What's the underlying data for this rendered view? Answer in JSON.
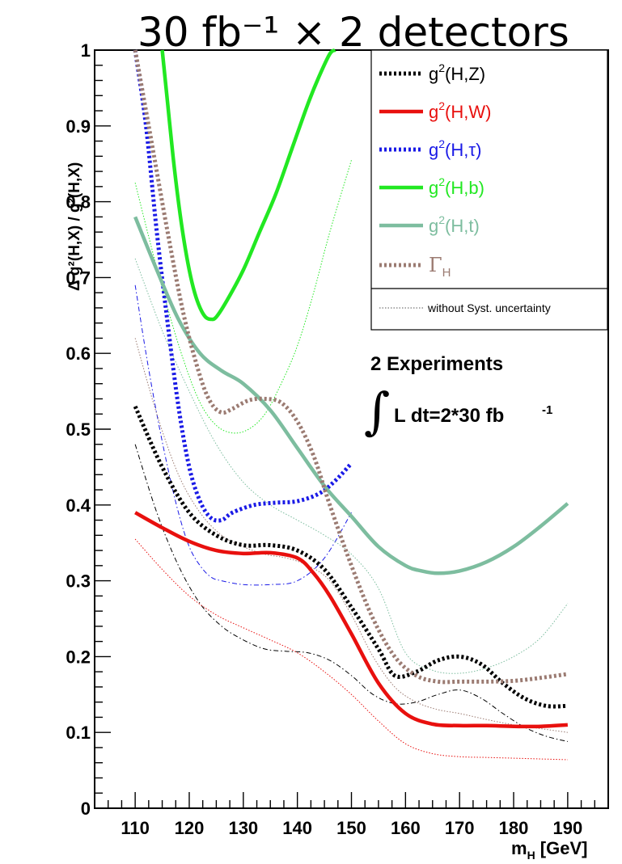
{
  "chart_data": {
    "type": "line",
    "title": "30 fb⁻¹ × 2 detectors",
    "xlabel": "m",
    "xlabel_sub": "H",
    "xlabel_unit": " [GeV]",
    "ylabel": "Δ g²(H,X) / g²(H,X)",
    "xlim": [
      102.5,
      197.5
    ],
    "ylim": [
      0,
      1
    ],
    "x_ticks": [
      110,
      120,
      130,
      140,
      150,
      160,
      170,
      180,
      190
    ],
    "y_ticks": [
      0,
      0.1,
      0.2,
      0.3,
      0.4,
      0.5,
      0.6,
      0.7,
      0.8,
      0.9,
      1
    ],
    "y_tick_labels": [
      "0",
      "0.1",
      "0.2",
      "0.3",
      "0.4",
      "0.5",
      "0.6",
      "0.7",
      "0.8",
      "0.9",
      "1"
    ],
    "grid": false,
    "legend_position": "top-right",
    "series": [
      {
        "name": "g²(H,Z)",
        "label_base": "g",
        "label_sup": "2",
        "label_rest": "(H,Z)",
        "color": "#000000",
        "style": "dotted-thick",
        "x": [
          110,
          115,
          120,
          125,
          130,
          135,
          140,
          145,
          150,
          155,
          158,
          162,
          166,
          170,
          174,
          178,
          182,
          186,
          190
        ],
        "y": [
          0.53,
          0.45,
          0.39,
          0.36,
          0.347,
          0.347,
          0.34,
          0.315,
          0.265,
          0.21,
          0.175,
          0.18,
          0.195,
          0.2,
          0.19,
          0.165,
          0.145,
          0.135,
          0.135
        ]
      },
      {
        "name": "g²(H,W)",
        "label_base": "g",
        "label_sup": "2",
        "label_rest": "(H,W)",
        "color": "#e8100e",
        "style": "solid-thick",
        "x": [
          110,
          115,
          120,
          125,
          130,
          135,
          140,
          143,
          146,
          150,
          155,
          160,
          165,
          170,
          175,
          180,
          185,
          190
        ],
        "y": [
          0.39,
          0.37,
          0.352,
          0.34,
          0.336,
          0.337,
          0.33,
          0.31,
          0.28,
          0.23,
          0.165,
          0.125,
          0.111,
          0.109,
          0.109,
          0.108,
          0.108,
          0.11
        ]
      },
      {
        "name": "g²(H,τ)",
        "label_base": "g",
        "label_sup": "2",
        "label_rest": "(H,τ)",
        "color": "#1a1ae6",
        "style": "dotted-thick",
        "x": [
          110,
          112,
          114,
          116,
          118,
          120,
          122,
          124,
          126,
          128,
          132,
          136,
          140,
          144,
          147,
          150
        ],
        "y": [
          1.0,
          0.9,
          0.76,
          0.64,
          0.53,
          0.45,
          0.405,
          0.383,
          0.38,
          0.39,
          0.4,
          0.403,
          0.405,
          0.415,
          0.432,
          0.455
        ]
      },
      {
        "name": "g²(H,b)",
        "label_base": "g",
        "label_sup": "2",
        "label_rest": "(H,b)",
        "color": "#22e822",
        "style": "solid-thick",
        "x": [
          115,
          116,
          117,
          118,
          119,
          120,
          121,
          122,
          123,
          124,
          125,
          127,
          130,
          133,
          136,
          139,
          142,
          144,
          146,
          147
        ],
        "y": [
          1.0,
          0.93,
          0.86,
          0.8,
          0.75,
          0.71,
          0.68,
          0.66,
          0.648,
          0.645,
          0.648,
          0.67,
          0.71,
          0.76,
          0.81,
          0.87,
          0.93,
          0.965,
          0.995,
          1.0
        ]
      },
      {
        "name": "g²(H,t)",
        "label_base": "g",
        "label_sup": "2",
        "label_rest": "(H,t)",
        "color": "#7dbd9f",
        "style": "solid-thick",
        "x": [
          110,
          114,
          118,
          122,
          126,
          130,
          135,
          140,
          145,
          150,
          155,
          160,
          163,
          166,
          170,
          175,
          180,
          185,
          190
        ],
        "y": [
          0.78,
          0.71,
          0.645,
          0.6,
          0.577,
          0.56,
          0.525,
          0.475,
          0.425,
          0.385,
          0.345,
          0.32,
          0.313,
          0.31,
          0.313,
          0.325,
          0.345,
          0.372,
          0.402
        ]
      },
      {
        "name": "ΓH",
        "label_base": "Γ",
        "label_sub": "H",
        "color": "#9b7b72",
        "style": "dotted-thick",
        "x": [
          110,
          113,
          116,
          119,
          122,
          124,
          126,
          128,
          131,
          134,
          137,
          140,
          143,
          146,
          150,
          154,
          158,
          162,
          166,
          170,
          175,
          180,
          185,
          190
        ],
        "y": [
          1.0,
          0.88,
          0.76,
          0.65,
          0.57,
          0.535,
          0.522,
          0.527,
          0.538,
          0.54,
          0.535,
          0.51,
          0.465,
          0.4,
          0.32,
          0.25,
          0.2,
          0.175,
          0.167,
          0.167,
          0.167,
          0.168,
          0.172,
          0.177
        ]
      }
    ],
    "syst_free_series": [
      {
        "color": "#000000",
        "style": "dashdot-thin",
        "x": [
          110,
          114,
          118,
          122,
          126,
          130,
          134,
          138,
          142,
          146,
          150,
          154,
          158,
          162,
          166,
          170,
          174,
          178,
          182,
          186,
          190
        ],
        "y": [
          0.48,
          0.39,
          0.32,
          0.27,
          0.24,
          0.222,
          0.21,
          0.207,
          0.205,
          0.195,
          0.175,
          0.15,
          0.138,
          0.14,
          0.15,
          0.156,
          0.145,
          0.125,
          0.107,
          0.095,
          0.088
        ]
      },
      {
        "color": "#e8100e",
        "style": "dotted-thin",
        "x": [
          110,
          115,
          120,
          125,
          130,
          135,
          140,
          145,
          150,
          155,
          160,
          165,
          170,
          175,
          180,
          185,
          190
        ],
        "y": [
          0.355,
          0.315,
          0.28,
          0.255,
          0.238,
          0.222,
          0.205,
          0.18,
          0.15,
          0.115,
          0.085,
          0.072,
          0.068,
          0.067,
          0.066,
          0.065,
          0.064
        ]
      },
      {
        "color": "#1a1ae6",
        "style": "dashdot-thin",
        "x": [
          110,
          112,
          114,
          116,
          118,
          120,
          122,
          124,
          126,
          130,
          135,
          140,
          145,
          150
        ],
        "y": [
          0.69,
          0.6,
          0.52,
          0.45,
          0.39,
          0.345,
          0.32,
          0.305,
          0.3,
          0.295,
          0.295,
          0.3,
          0.33,
          0.39
        ]
      },
      {
        "color": "#22e822",
        "style": "dotted-thin",
        "x": [
          110,
          113,
          116,
          119,
          122,
          125,
          128,
          131,
          134,
          137,
          140,
          143,
          146,
          150
        ],
        "y": [
          0.825,
          0.74,
          0.66,
          0.59,
          0.535,
          0.505,
          0.495,
          0.5,
          0.52,
          0.56,
          0.61,
          0.68,
          0.76,
          0.855
        ]
      },
      {
        "color": "#7dbd9f",
        "style": "dotted-thin",
        "x": [
          110,
          115,
          120,
          125,
          130,
          135,
          140,
          145,
          150,
          155,
          160,
          165,
          170,
          175,
          180,
          185,
          190
        ],
        "y": [
          0.725,
          0.63,
          0.55,
          0.48,
          0.43,
          0.4,
          0.38,
          0.36,
          0.335,
          0.29,
          0.205,
          0.182,
          0.178,
          0.185,
          0.2,
          0.225,
          0.27
        ]
      },
      {
        "color": "#9b7b72",
        "style": "dotted-thin",
        "x": [
          110,
          114,
          118,
          122,
          126,
          130,
          134,
          138,
          142,
          146,
          150,
          154,
          158,
          162,
          166,
          170,
          175,
          180,
          185,
          190
        ],
        "y": [
          0.62,
          0.52,
          0.44,
          0.39,
          0.36,
          0.345,
          0.335,
          0.33,
          0.32,
          0.3,
          0.255,
          0.2,
          0.16,
          0.14,
          0.13,
          0.125,
          0.117,
          0.11,
          0.105,
          0.1
        ]
      }
    ],
    "legend_syst_label": "without Syst. uncertainty",
    "annotations": {
      "line1": "2 Experiments",
      "integral": "∫",
      "line2": "L dt=2*30 fb",
      "line2_sup": "-1"
    }
  }
}
